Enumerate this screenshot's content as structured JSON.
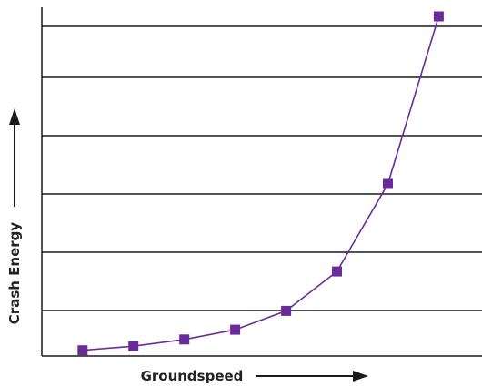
{
  "chart_data": {
    "type": "line",
    "title": "",
    "xlabel": "Groundspeed",
    "ylabel": "Crash Energy",
    "x": [
      1,
      2,
      3,
      4,
      5,
      6,
      7,
      8
    ],
    "series": [
      {
        "values": [
          0,
          0.72,
          1.9,
          3.6,
          6.9,
          13.8,
          29.1,
          58.4
        ]
      }
    ],
    "xlim": [
      0.2,
      8.85
    ],
    "ylim": [
      -1,
      60
    ],
    "grid": "horizontal",
    "x_ticks": false,
    "y_ticks": false,
    "colors": {
      "series": "#6a2c9a",
      "marker": "#6a2c9a",
      "grid": "#1a1a1a",
      "axis": "#1a1a1a"
    }
  }
}
